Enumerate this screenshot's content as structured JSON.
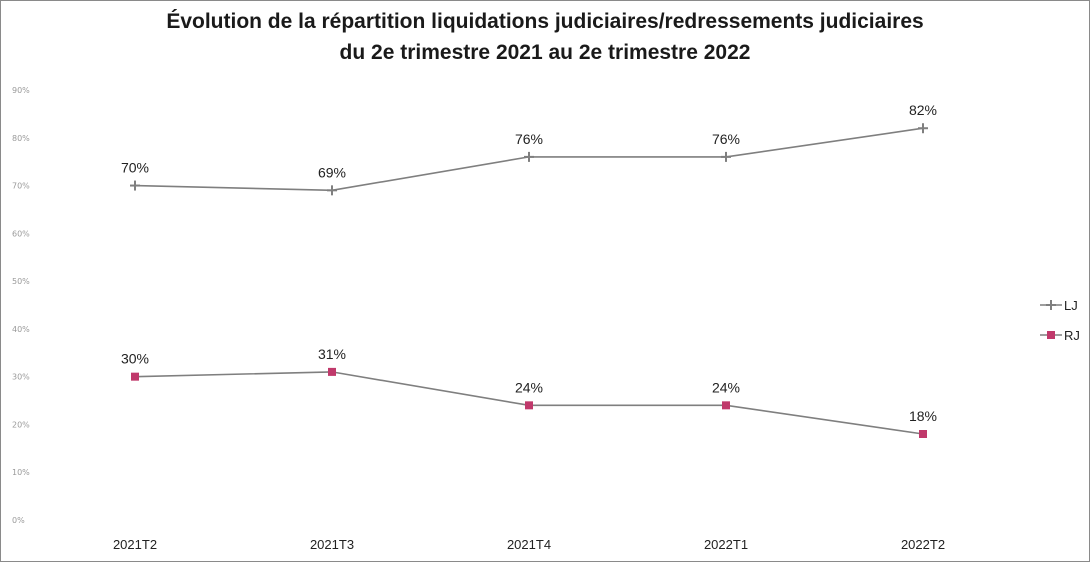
{
  "chart_data": {
    "type": "line",
    "title_line1": "Évolution de la répartition liquidations judiciaires/redressements judiciaires",
    "title_line2": "du 2e trimestre 2021 au 2e trimestre 2022",
    "categories": [
      "2021T2",
      "2021T3",
      "2021T4",
      "2022T1",
      "2022T2"
    ],
    "y_ticks": [
      "0%",
      "10%",
      "20%",
      "30%",
      "40%",
      "50%",
      "60%",
      "70%",
      "80%",
      "90%"
    ],
    "ylim": [
      0,
      90
    ],
    "grid": false,
    "legend_position": "right",
    "series": [
      {
        "name": "LJ",
        "values": [
          70,
          69,
          76,
          76,
          82
        ],
        "labels": [
          "70%",
          "69%",
          "76%",
          "76%",
          "82%"
        ],
        "color": "#7f7f7f",
        "marker": "plus"
      },
      {
        "name": "RJ",
        "values": [
          30,
          31,
          24,
          24,
          18
        ],
        "labels": [
          "30%",
          "31%",
          "24%",
          "24%",
          "18%"
        ],
        "color": "#c0396b",
        "marker": "square"
      }
    ]
  }
}
